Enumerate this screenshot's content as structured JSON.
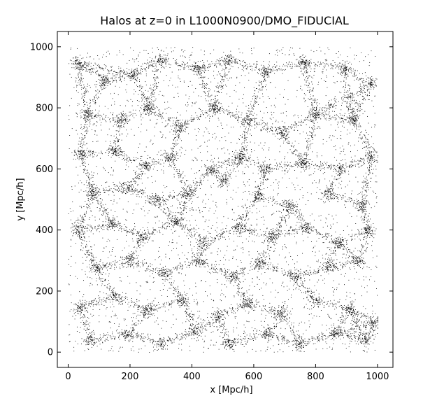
{
  "chart_data": {
    "type": "scatter",
    "title": "Halos at z=0 in L1000N0900/DMO_FIDUCIAL",
    "xlabel": "x [Mpc/h]",
    "ylabel": "y [Mpc/h]",
    "xlim": [
      -35,
      1050
    ],
    "ylim": [
      -50,
      1050
    ],
    "xticks": [
      0,
      200,
      400,
      600,
      800,
      1000
    ],
    "yticks": [
      0,
      200,
      400,
      600,
      800,
      1000
    ],
    "xtick_labels": [
      "0",
      "200",
      "400",
      "600",
      "800",
      "1000"
    ],
    "ytick_labels": [
      "0",
      "200",
      "400",
      "600",
      "800",
      "1000"
    ],
    "grid": false,
    "legend": "none",
    "box_extent": [
      0,
      1000
    ],
    "marker_color": "#000000",
    "background_color": "#ffffff",
    "series": [
      {
        "distribution": "cosmic-web filaments and nodes filling the full box",
        "filament_nodes": [
          [
            30,
            950
          ],
          [
            120,
            890
          ],
          [
            210,
            910
          ],
          [
            300,
            960
          ],
          [
            420,
            930
          ],
          [
            520,
            960
          ],
          [
            640,
            920
          ],
          [
            760,
            950
          ],
          [
            890,
            930
          ],
          [
            980,
            880
          ],
          [
            60,
            780
          ],
          [
            170,
            760
          ],
          [
            260,
            800
          ],
          [
            360,
            740
          ],
          [
            470,
            800
          ],
          [
            580,
            760
          ],
          [
            690,
            720
          ],
          [
            800,
            780
          ],
          [
            920,
            760
          ],
          [
            40,
            650
          ],
          [
            150,
            660
          ],
          [
            250,
            610
          ],
          [
            330,
            640
          ],
          [
            460,
            600
          ],
          [
            560,
            640
          ],
          [
            640,
            600
          ],
          [
            760,
            620
          ],
          [
            880,
            600
          ],
          [
            980,
            640
          ],
          [
            80,
            520
          ],
          [
            190,
            540
          ],
          [
            280,
            500
          ],
          [
            390,
            520
          ],
          [
            500,
            560
          ],
          [
            610,
            510
          ],
          [
            720,
            480
          ],
          [
            840,
            520
          ],
          [
            950,
            480
          ],
          [
            30,
            400
          ],
          [
            140,
            420
          ],
          [
            240,
            380
          ],
          [
            350,
            430
          ],
          [
            440,
            360
          ],
          [
            550,
            410
          ],
          [
            660,
            380
          ],
          [
            770,
            410
          ],
          [
            870,
            360
          ],
          [
            970,
            400
          ],
          [
            90,
            280
          ],
          [
            200,
            300
          ],
          [
            310,
            260
          ],
          [
            420,
            300
          ],
          [
            530,
            250
          ],
          [
            620,
            290
          ],
          [
            730,
            250
          ],
          [
            840,
            280
          ],
          [
            940,
            300
          ],
          [
            40,
            150
          ],
          [
            150,
            180
          ],
          [
            260,
            140
          ],
          [
            370,
            170
          ],
          [
            480,
            120
          ],
          [
            580,
            160
          ],
          [
            690,
            130
          ],
          [
            800,
            170
          ],
          [
            910,
            140
          ],
          [
            990,
            100
          ],
          [
            70,
            40
          ],
          [
            190,
            60
          ],
          [
            300,
            30
          ],
          [
            410,
            70
          ],
          [
            520,
            30
          ],
          [
            640,
            60
          ],
          [
            750,
            30
          ],
          [
            860,
            60
          ],
          [
            960,
            40
          ]
        ]
      }
    ]
  }
}
